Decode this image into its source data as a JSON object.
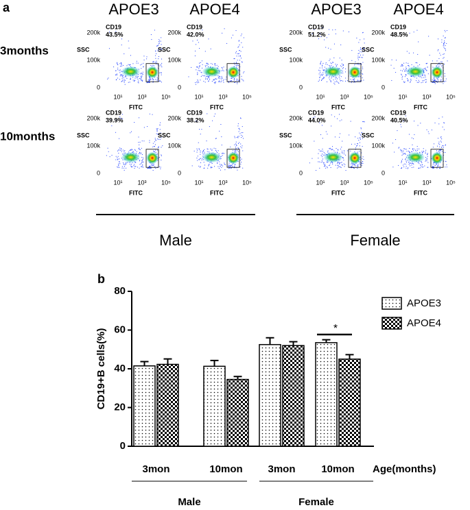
{
  "panel_a": {
    "label": "a",
    "columns": [
      "APOE3",
      "APOE4",
      "APOE3",
      "APOE4"
    ],
    "rows": [
      "3months",
      "10months"
    ],
    "groups": [
      "Male",
      "Female"
    ],
    "y_axis_label": "SSC",
    "x_axis_label": "FITC",
    "yticks": [
      "200k",
      "100k",
      "0"
    ],
    "xticks": [
      "10¹",
      "10³",
      "10⁵"
    ],
    "gate": "CD19",
    "plots": [
      [
        "43.5%",
        "42.0%",
        "51.2%",
        "48.5%"
      ],
      [
        "39.9%",
        "38.2%",
        "44.0%",
        "40.5%"
      ]
    ]
  },
  "chart_data": {
    "type": "bar",
    "label": "b",
    "categories": [
      "3mon",
      "10mon",
      "3mon",
      "10mon"
    ],
    "groups": [
      "Male",
      "Female"
    ],
    "x_label": "Age(months)",
    "y_label": "CD19+B cells(%)",
    "ylim": [
      0,
      80
    ],
    "yticks": [
      0,
      20,
      40,
      60,
      80
    ],
    "annotation": "*",
    "series": [
      {
        "name": "APOE3",
        "pattern": "dots",
        "values": [
          41.5,
          41.3,
          52.5,
          53.5
        ],
        "errors": [
          2.2,
          3.0,
          3.5,
          1.5
        ]
      },
      {
        "name": "APOE4",
        "pattern": "checker",
        "values": [
          42.3,
          34.5,
          52.0,
          45.0
        ],
        "errors": [
          2.8,
          1.5,
          2.0,
          2.3
        ]
      }
    ]
  }
}
